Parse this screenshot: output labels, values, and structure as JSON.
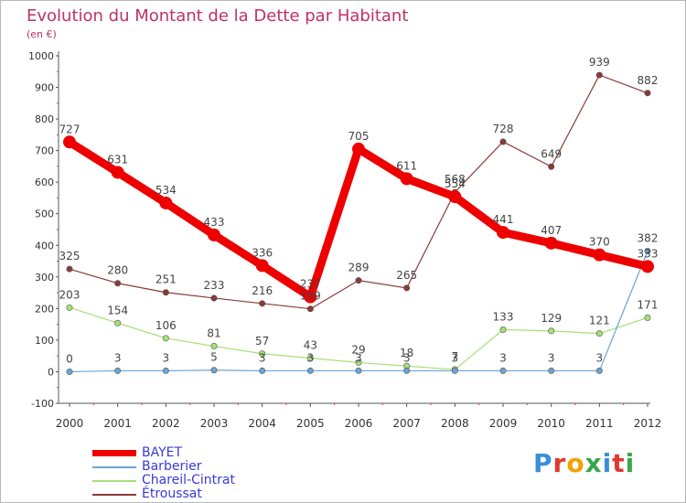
{
  "header": {
    "title": "Evolution du Montant de la Dette par Habitant",
    "unit": "(en €)"
  },
  "brand": {
    "logo_text": "Proxiti"
  },
  "chart_data": {
    "type": "line",
    "title": "Evolution du Montant de la Dette par Habitant",
    "subtitle": "(en €)",
    "xlabel": "",
    "ylabel": "",
    "x": [
      "2000",
      "2001",
      "2002",
      "2003",
      "2004",
      "2005",
      "2006",
      "2007",
      "2008",
      "2009",
      "2010",
      "2011",
      "2012"
    ],
    "ylim": [
      -100,
      1000
    ],
    "yticks": [
      -100,
      0,
      100,
      200,
      300,
      400,
      500,
      600,
      700,
      800,
      900,
      1000
    ],
    "grid": false,
    "legend_position": "bottom-left",
    "series": [
      {
        "name": "BAYET",
        "color": "#ee0000",
        "values": [
          727,
          631,
          534,
          433,
          336,
          237,
          705,
          611,
          554,
          441,
          407,
          370,
          333
        ]
      },
      {
        "name": "Barberier",
        "color": "#6fa3cf",
        "values": [
          0,
          3,
          3,
          5,
          3,
          3,
          3,
          3,
          3,
          3,
          3,
          3,
          382
        ]
      },
      {
        "name": "Chareil-Cintrat",
        "color": "#a6e07a",
        "values": [
          203,
          154,
          106,
          81,
          57,
          43,
          29,
          18,
          7,
          133,
          129,
          121,
          171
        ]
      },
      {
        "name": "Étroussat",
        "color": "#8b3a3a",
        "values": [
          325,
          280,
          251,
          233,
          216,
          199,
          289,
          265,
          568,
          728,
          649,
          939,
          882
        ]
      }
    ]
  }
}
